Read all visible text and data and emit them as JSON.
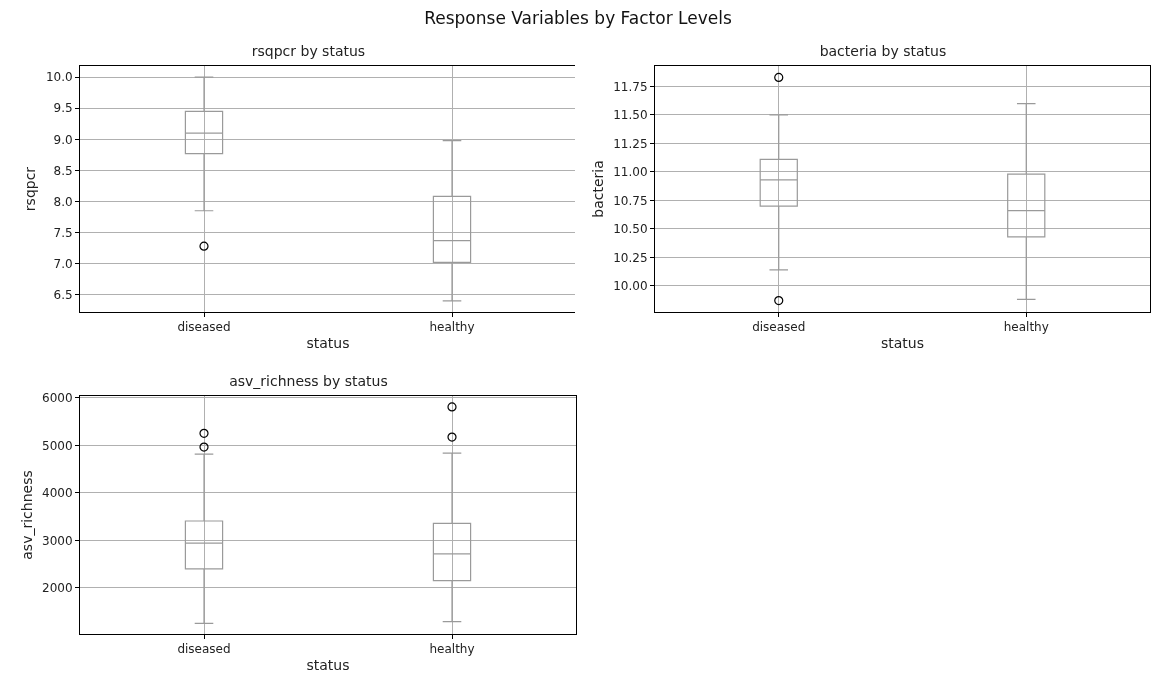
{
  "chart_data": [
    {
      "type": "other",
      "title": "Response Variables by Factor Levels"
    },
    {
      "type": "box",
      "title": "rsqpcr by status",
      "xlabel": "status",
      "ylabel": "rsqpcr",
      "categories": [
        "diseased",
        "healthy"
      ],
      "ylim": [
        6.22,
        10.18
      ],
      "yticks": [
        {
          "value": 6.5,
          "label": "6.5"
        },
        {
          "value": 7,
          "label": "7.0"
        },
        {
          "value": 7.5,
          "label": "7.5"
        },
        {
          "value": 8,
          "label": "8.0"
        },
        {
          "value": 8.5,
          "label": "8.5"
        },
        {
          "value": 9,
          "label": "9.0"
        },
        {
          "value": 9.5,
          "label": "9.5"
        },
        {
          "value": 10,
          "label": "10.0"
        }
      ],
      "grid": true,
      "marker": "circle",
      "color": "#9a9a9a",
      "boxes": [
        {
          "low": 7.85,
          "q1": 8.77,
          "median": 9.1,
          "q3": 9.45,
          "high": 10.0,
          "outliers": [
            7.28
          ]
        },
        {
          "low": 6.4,
          "q1": 7.02,
          "median": 7.37,
          "q3": 8.08,
          "high": 8.98
        }
      ]
    },
    {
      "type": "box",
      "title": "bacteria by status",
      "xlabel": "status",
      "ylabel": "bacteria",
      "categories": [
        "diseased",
        "healthy"
      ],
      "ylim": [
        9.77,
        11.93
      ],
      "yticks": [
        {
          "value": 10,
          "label": "10.00"
        },
        {
          "value": 10.25,
          "label": "10.25"
        },
        {
          "value": 10.5,
          "label": "10.50"
        },
        {
          "value": 10.75,
          "label": "10.75"
        },
        {
          "value": 11,
          "label": "11.00"
        },
        {
          "value": 11.25,
          "label": "11.25"
        },
        {
          "value": 11.5,
          "label": "11.50"
        },
        {
          "value": 11.75,
          "label": "11.75"
        }
      ],
      "grid": true,
      "marker": "circle",
      "color": "#9a9a9a",
      "boxes": [
        {
          "low": 10.14,
          "q1": 10.7,
          "median": 10.93,
          "q3": 11.11,
          "high": 11.5,
          "outliers": [
            11.83,
            9.87
          ]
        },
        {
          "low": 9.88,
          "q1": 10.43,
          "median": 10.66,
          "q3": 10.98,
          "high": 11.6
        }
      ]
    },
    {
      "type": "box",
      "title": "asv_richness by status",
      "xlabel": "status",
      "ylabel": "asv_richness",
      "categories": [
        "diseased",
        "healthy"
      ],
      "ylim": [
        1030,
        6040
      ],
      "yticks": [
        2000,
        3000,
        4000,
        5000,
        6000
      ],
      "grid": true,
      "marker": "circle",
      "color": "#9a9a9a",
      "boxes": [
        {
          "low": 1255,
          "q1": 2401,
          "median": 2942,
          "q3": 3409,
          "high": 4818,
          "outliers": [
            5255,
            4964
          ]
        },
        {
          "low": 1291,
          "q1": 2153,
          "median": 2715,
          "q3": 3358,
          "high": 4839,
          "outliers": [
            5810,
            5175
          ]
        }
      ]
    }
  ]
}
